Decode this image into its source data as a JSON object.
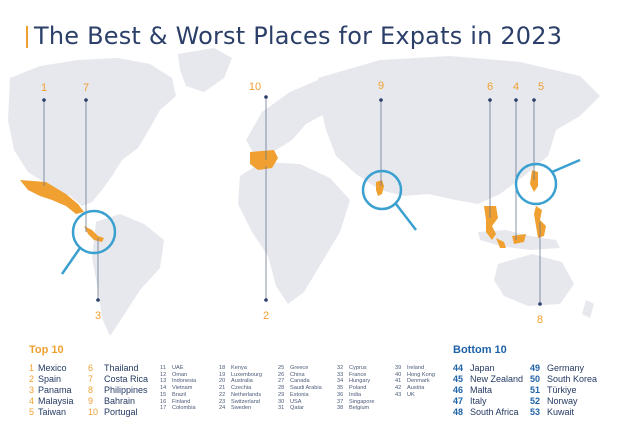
{
  "title": "The Best & Worst Places for Expats in 2023",
  "colors": {
    "accent": "#f0a030",
    "map": "#e6e8ed",
    "marker": "#2b3f69",
    "lens": "#3aa0d0",
    "bottom_num": "#1e62a8"
  },
  "map_labels": [
    "1",
    "7",
    "10",
    "9",
    "6",
    "4",
    "5",
    "3",
    "2",
    "8"
  ],
  "top10": {
    "heading": "Top 10",
    "col1": [
      {
        "n": "1",
        "name": "Mexico"
      },
      {
        "n": "2",
        "name": "Spain"
      },
      {
        "n": "3",
        "name": "Panama"
      },
      {
        "n": "4",
        "name": "Malaysia"
      },
      {
        "n": "5",
        "name": "Taiwan"
      }
    ],
    "col2": [
      {
        "n": "6",
        "name": "Thailand"
      },
      {
        "n": "7",
        "name": "Costa Rica"
      },
      {
        "n": "8",
        "name": "Philippines"
      },
      {
        "n": "9",
        "name": "Bahrain"
      },
      {
        "n": "10",
        "name": "Portugal"
      }
    ]
  },
  "middle": [
    [
      {
        "n": "11",
        "name": "UAE"
      },
      {
        "n": "12",
        "name": "Oman"
      },
      {
        "n": "13",
        "name": "Indonesia"
      },
      {
        "n": "14",
        "name": "Vietnam"
      },
      {
        "n": "15",
        "name": "Brazil"
      },
      {
        "n": "16",
        "name": "Finland"
      },
      {
        "n": "17",
        "name": "Colombia"
      }
    ],
    [
      {
        "n": "18",
        "name": "Kenya"
      },
      {
        "n": "19",
        "name": "Luxembourg"
      },
      {
        "n": "20",
        "name": "Australia"
      },
      {
        "n": "21",
        "name": "Czechia"
      },
      {
        "n": "22",
        "name": "Netherlands"
      },
      {
        "n": "23",
        "name": "Switzerland"
      },
      {
        "n": "24",
        "name": "Sweden"
      }
    ],
    [
      {
        "n": "25",
        "name": "Greece"
      },
      {
        "n": "26",
        "name": "China"
      },
      {
        "n": "27",
        "name": "Canada"
      },
      {
        "n": "28",
        "name": "Saudi Arabia"
      },
      {
        "n": "29",
        "name": "Estonia"
      },
      {
        "n": "30",
        "name": "USA"
      },
      {
        "n": "31",
        "name": "Qatar"
      }
    ],
    [
      {
        "n": "32",
        "name": "Cyprus"
      },
      {
        "n": "33",
        "name": "France"
      },
      {
        "n": "34",
        "name": "Hungary"
      },
      {
        "n": "35",
        "name": "Poland"
      },
      {
        "n": "36",
        "name": "India"
      },
      {
        "n": "37",
        "name": "Singapore"
      },
      {
        "n": "38",
        "name": "Belgium"
      }
    ],
    [
      {
        "n": "39",
        "name": "Ireland"
      },
      {
        "n": "40",
        "name": "Hong Kong"
      },
      {
        "n": "41",
        "name": "Denmark"
      },
      {
        "n": "42",
        "name": "Austria"
      },
      {
        "n": "43",
        "name": "UK"
      }
    ]
  ],
  "bottom10": {
    "heading": "Bottom 10",
    "col1": [
      {
        "n": "44",
        "name": "Japan"
      },
      {
        "n": "45",
        "name": "New Zealand"
      },
      {
        "n": "46",
        "name": "Malta"
      },
      {
        "n": "47",
        "name": "Italy"
      },
      {
        "n": "48",
        "name": "South Africa"
      }
    ],
    "col2": [
      {
        "n": "49",
        "name": "Germany"
      },
      {
        "n": "50",
        "name": "South Korea"
      },
      {
        "n": "51",
        "name": "Türkiye"
      },
      {
        "n": "52",
        "name": "Norway"
      },
      {
        "n": "53",
        "name": "Kuwait"
      }
    ]
  }
}
